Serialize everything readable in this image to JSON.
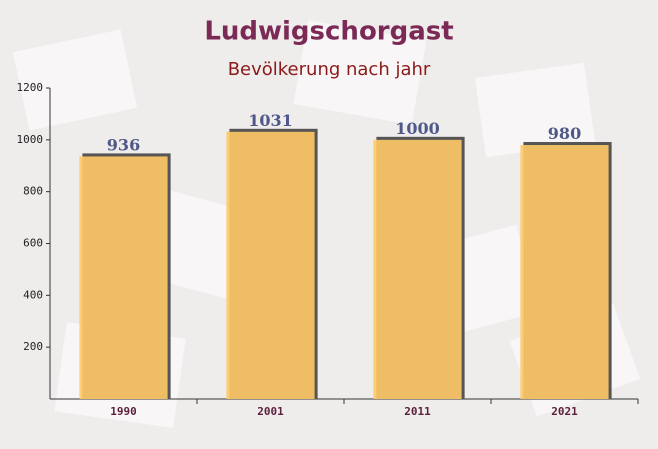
{
  "chart_data": {
    "type": "bar",
    "title": "Ludwigschorgast",
    "subtitle": "Bevölkerung nach jahr",
    "categories": [
      "1990",
      "2001",
      "2011",
      "2021"
    ],
    "values": [
      936,
      1031,
      1000,
      980
    ],
    "color": "#ffc966",
    "ylim": [
      0,
      1200
    ],
    "yticks": [
      200,
      400,
      600,
      800,
      1000,
      1200
    ]
  }
}
